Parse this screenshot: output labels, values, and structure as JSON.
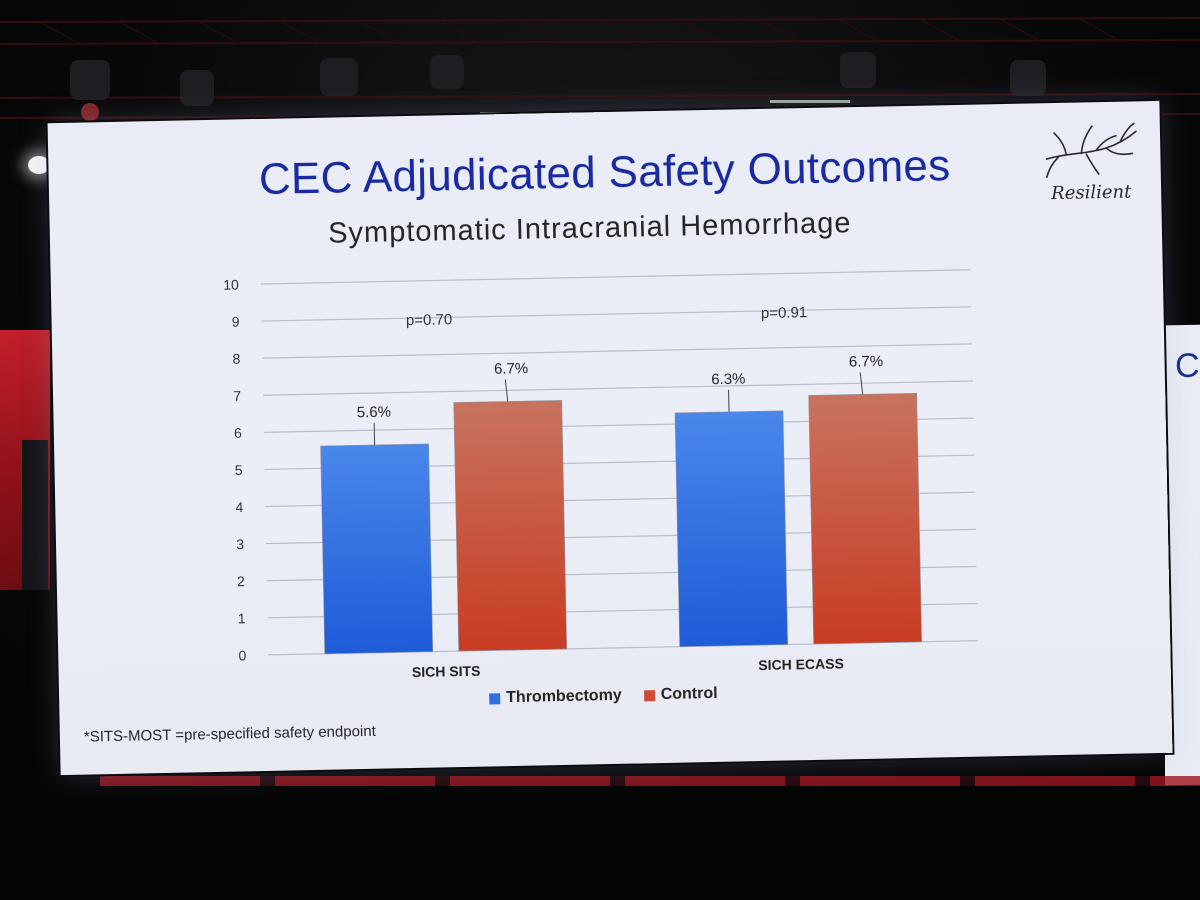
{
  "slide": {
    "title": "CEC Adjudicated Safety Outcomes",
    "footnote": "*SITS-MOST =pre-specified safety endpoint",
    "logo_text": "Resilient"
  },
  "side_screen": {
    "text": "C"
  },
  "chart_data": {
    "type": "bar",
    "title": "Symptomatic Intracranial Hemorrhage",
    "xlabel": "",
    "ylabel": "",
    "ylim": [
      0,
      10
    ],
    "yticks": [
      0,
      1,
      2,
      3,
      4,
      5,
      6,
      7,
      8,
      9,
      10
    ],
    "grid": true,
    "legend_placement": "bottom",
    "categories": [
      "SICH SITS",
      "SICH ECASS"
    ],
    "series": [
      {
        "name": "Thrombectomy",
        "values": [
          5.6,
          6.3
        ],
        "labels": [
          "5.6%",
          "6.3%"
        ],
        "color": "#2f6fe0"
      },
      {
        "name": "Control",
        "values": [
          6.7,
          6.7
        ],
        "labels": [
          "6.7%",
          "6.7%"
        ],
        "color": "#cf4a36"
      }
    ],
    "annotations": [
      "p=0.70",
      "p=0.91"
    ]
  }
}
